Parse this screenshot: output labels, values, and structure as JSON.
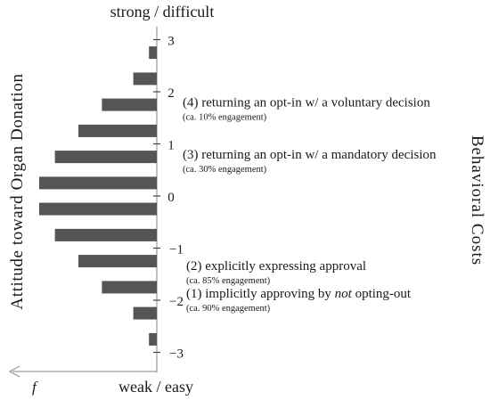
{
  "chart_data": {
    "type": "bar",
    "orientation": "horizontal",
    "title_top": "strong / difficult",
    "title_bottom": "weak / easy",
    "ylabel": "Attitude toward Organ Donation",
    "right_label": "Behavioral Costs",
    "x_axis_symbol": "f",
    "ylim": [
      -3.5,
      3.5
    ],
    "ytick_labels": [
      "3",
      "2",
      "1",
      "0",
      "−1",
      "−2",
      "−3"
    ],
    "yticks": [
      3,
      2,
      1,
      0,
      -1,
      -2,
      -3
    ],
    "categories": [
      2.75,
      2.25,
      1.75,
      1.25,
      0.75,
      0.25,
      -0.25,
      -0.75,
      -1.25,
      -1.75,
      -2.25,
      -2.75
    ],
    "values": [
      1,
      3,
      7,
      10,
      13,
      15,
      15,
      13,
      10,
      7,
      3,
      1
    ],
    "bar_color": "#555555",
    "annotations": [
      {
        "y": 1.72,
        "text": "(4) returning an opt-in w/ a voluntary decision",
        "note": "(ca. 10% engagement)"
      },
      {
        "y": 0.72,
        "text": "(3) returning an opt-in w/ a mandatory decision",
        "note": "(ca. 30% engagement)"
      },
      {
        "y": -1.42,
        "text": "(2) explicitly expressing approval",
        "note": "(ca. 85% engagement)"
      },
      {
        "y": -1.95,
        "text_before": "(1) implicitly approving by ",
        "text_italic": "not",
        "text_after": " opting-out",
        "note": "(ca. 90% engagement)"
      }
    ]
  }
}
